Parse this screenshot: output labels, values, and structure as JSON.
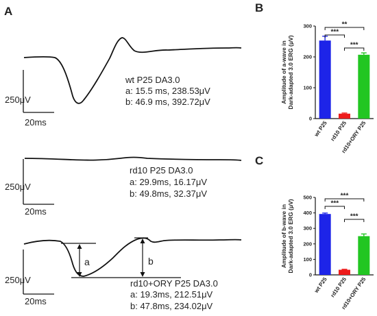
{
  "panels": {
    "A": {
      "letter": "A",
      "traces": [
        {
          "title": "wt P25 DA3.0",
          "a": "a: 15.5 ms, 238.53μV",
          "b": "b: 46.9 ms, 392.72μV",
          "scale_v": "250μV",
          "scale_t": "20ms"
        },
        {
          "title": "rd10 P25 DA3.0",
          "a": "a: 29.9ms, 16.17μV",
          "b": "b: 49.8ms, 32.37μV",
          "scale_v": "250μV",
          "scale_t": "20ms"
        },
        {
          "title": "rd10+ORY P25 DA3.0",
          "a": "a: 19.3ms, 212.51μV",
          "b": "b: 47.8ms, 234.02μV",
          "scale_v": "250μV",
          "scale_t": "20ms",
          "marker_a": "a",
          "marker_b": "b"
        }
      ]
    },
    "B": {
      "letter": "B"
    },
    "C": {
      "letter": "C"
    }
  },
  "chart_data": [
    {
      "type": "bar",
      "panel": "B",
      "ylabel_line1": "Amplitude of a-wave in",
      "ylabel_line2": "Dark-adapted 3.0 ERG (μV)",
      "categories": [
        "wt P25",
        "rd10  P25",
        "rd10+ORY P25"
      ],
      "values": [
        253,
        16,
        207
      ],
      "errors": [
        14,
        2,
        6
      ],
      "colors": [
        "#1d24e8",
        "#ee1c1c",
        "#22c622"
      ],
      "ylim": [
        0,
        300
      ],
      "yticks": [
        0,
        100,
        200,
        300
      ],
      "significance": [
        {
          "from": 0,
          "to": 1,
          "label": "***",
          "level": 0
        },
        {
          "from": 0,
          "to": 2,
          "label": "**",
          "level": 1
        },
        {
          "from": 1,
          "to": 2,
          "label": "***",
          "level": 2
        }
      ]
    },
    {
      "type": "bar",
      "panel": "C",
      "ylabel_line1": "Amplitude of b-wave in",
      "ylabel_line2": "Dark-adapted 3.0 ERG (μV)",
      "categories": [
        "wt P25",
        "rd10 P25",
        "rd10+ORY P25"
      ],
      "values": [
        393,
        33,
        250
      ],
      "errors": [
        6,
        3,
        14
      ],
      "colors": [
        "#1d24e8",
        "#ee1c1c",
        "#22c622"
      ],
      "ylim": [
        0,
        500
      ],
      "yticks": [
        0,
        100,
        200,
        300,
        400,
        500
      ],
      "significance": [
        {
          "from": 0,
          "to": 1,
          "label": "***",
          "level": 0
        },
        {
          "from": 0,
          "to": 2,
          "label": "***",
          "level": 1
        },
        {
          "from": 1,
          "to": 2,
          "label": "***",
          "level": 2
        }
      ]
    }
  ]
}
